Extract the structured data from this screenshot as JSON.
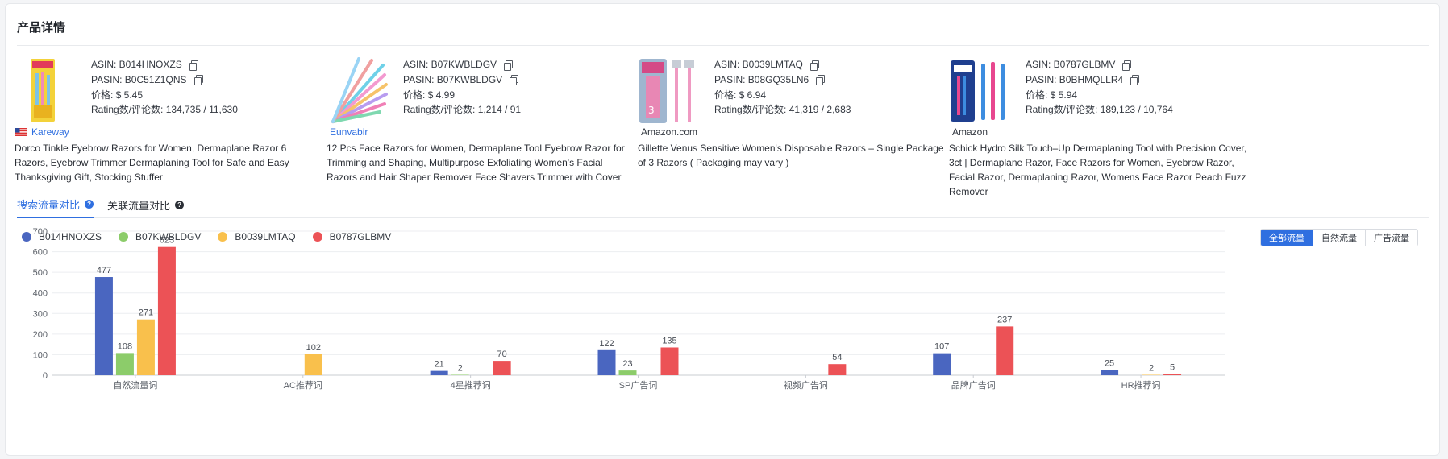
{
  "panel": {
    "title": "产品详情"
  },
  "products": [
    {
      "asin": "ASIN: B014HNOXZS",
      "pasin": "PASIN: B0C51Z1QNS",
      "price": "价格: $ 5.45",
      "rating": "Rating数/评论数: 134,735 / 11,630",
      "brand": "Kareway",
      "brand_style": "link",
      "show_flag": true,
      "thumb": "yellow-razor-pack",
      "desc": "Dorco Tinkle Eyebrow Razors for Women, Dermaplane Razor 6 Razors, Eyebrow Trimmer Dermaplaning Tool for Safe and Easy Thanksgiving Gift, Stocking Stuffer"
    },
    {
      "asin": "ASIN: B07KWBLDGV",
      "pasin": "PASIN: B07KWBLDGV",
      "price": "价格: $ 4.99",
      "rating": "Rating数/评论数: 1,214 / 91",
      "brand": "Eunvabir",
      "brand_style": "link",
      "show_flag": false,
      "thumb": "pastel-razor-fan",
      "desc": "12 Pcs Face Razors for Women, Dermaplane Tool Eyebrow Razor for Trimming and Shaping, Multipurpose Exfoliating Women's Facial Razors and Hair Shaper Remover Face Shavers Trimmer with Cover"
    },
    {
      "asin": "ASIN: B0039LMTAQ",
      "pasin": "PASIN: B08GQ35LN6",
      "price": "价格: $ 6.94",
      "rating": "Rating数/评论数: 41,319 / 2,683",
      "brand": "Amazon.com",
      "brand_style": "plain",
      "show_flag": false,
      "thumb": "venus-razor-pack",
      "desc": "Gillette Venus Sensitive Women's Disposable Razors – Single Package of 3 Razors ( Packaging may vary )"
    },
    {
      "asin": "ASIN: B0787GLBMV",
      "pasin": "PASIN: B0BHMQLLR4",
      "price": "价格: $ 5.94",
      "rating": "Rating数/评论数: 189,123 / 10,764",
      "brand": "Amazon",
      "brand_style": "plain",
      "show_flag": false,
      "thumb": "schick-razor-pack",
      "desc": "Schick Hydro Silk Touch–Up Dermaplaning Tool with Precision Cover, 3ct | Dermaplane Razor, Face Razors for Women, Eyebrow Razor, Facial Razor, Dermaplaning Razor, Womens Face Razor Peach Fuzz Remover"
    }
  ],
  "tabs": [
    {
      "label": "搜索流量对比",
      "active": true
    },
    {
      "label": "关联流量对比",
      "active": false
    }
  ],
  "toggle": {
    "options": [
      "全部流量",
      "自然流量",
      "广告流量"
    ],
    "selected": 0
  },
  "colors": {
    "accent": "#2f6fe0",
    "series": [
      "#4a66c0",
      "#8ccc6a",
      "#f9c04c",
      "#ec5256"
    ]
  },
  "chart_data": {
    "type": "bar",
    "categories": [
      "自然流量词",
      "AC推荐词",
      "4星推荐词",
      "SP广告词",
      "视频广告词",
      "品牌广告词",
      "HR推荐词"
    ],
    "series": [
      {
        "name": "B014HNOXZS",
        "values": [
          477,
          0,
          21,
          122,
          0,
          107,
          25
        ],
        "labels": [
          "477",
          "",
          "21",
          "122",
          "",
          "107",
          "25"
        ]
      },
      {
        "name": "B07KWBLDGV",
        "values": [
          108,
          0,
          2,
          23,
          0,
          0,
          0
        ],
        "labels": [
          "108",
          "",
          "2",
          "23",
          "",
          "",
          ""
        ]
      },
      {
        "name": "B0039LMTAQ",
        "values": [
          271,
          102,
          0,
          0,
          0,
          0,
          2
        ],
        "labels": [
          "271",
          "102",
          "",
          "",
          "",
          "",
          "2"
        ]
      },
      {
        "name": "B0787GLBMV",
        "values": [
          623,
          0,
          70,
          135,
          54,
          237,
          5
        ],
        "labels": [
          "623",
          "",
          "70",
          "135",
          "54",
          "237",
          "5"
        ]
      }
    ],
    "yticks": [
      "0",
      "100",
      "200",
      "300",
      "400",
      "500",
      "600",
      "700"
    ],
    "ylim": [
      0,
      700
    ],
    "grid": true,
    "legend_position": "top-left"
  }
}
